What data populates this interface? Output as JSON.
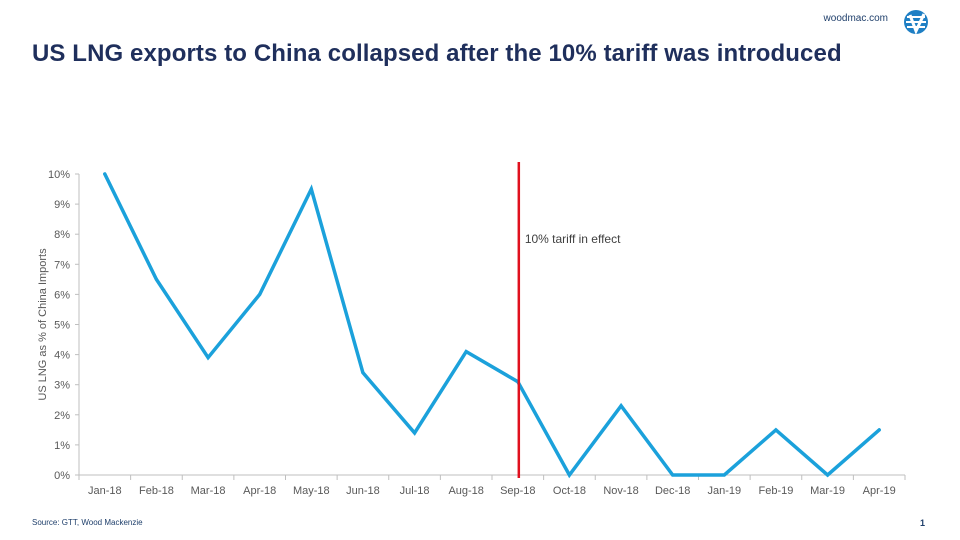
{
  "header": {
    "brand_url": "woodmac.com",
    "title": "US LNG exports to China collapsed after the 10% tariff was introduced"
  },
  "footer": {
    "source": "Source: GTT, Wood Mackenzie",
    "page_number": "1"
  },
  "colors": {
    "series": "#1ba1db",
    "annotation": "#e0101e",
    "title": "#1f2f5c",
    "brand": "#1f3f6b"
  },
  "chart_data": {
    "type": "line",
    "title": "",
    "xlabel": "",
    "ylabel": "US LNG as % of China Imports",
    "categories": [
      "Jan-18",
      "Feb-18",
      "Mar-18",
      "Apr-18",
      "May-18",
      "Jun-18",
      "Jul-18",
      "Aug-18",
      "Sep-18",
      "Oct-18",
      "Nov-18",
      "Dec-18",
      "Jan-19",
      "Feb-19",
      "Mar-19",
      "Apr-19"
    ],
    "series": [
      {
        "values": [
          10.0,
          6.5,
          3.9,
          6.0,
          9.5,
          3.4,
          1.4,
          4.1,
          3.1,
          0.0,
          2.3,
          0.0,
          0.0,
          1.5,
          0.0,
          1.5
        ]
      }
    ],
    "ylim": [
      0,
      10
    ],
    "yticks": [
      0,
      1,
      2,
      3,
      4,
      5,
      6,
      7,
      8,
      9,
      10
    ],
    "ytick_labels": [
      "0%",
      "1%",
      "2%",
      "3%",
      "4%",
      "5%",
      "6%",
      "7%",
      "8%",
      "9%",
      "10%"
    ],
    "grid": false,
    "legend": "none",
    "annotations": [
      {
        "label": "10% tariff in effect",
        "x_position": "between Aug-18 and Sep-18"
      }
    ]
  }
}
